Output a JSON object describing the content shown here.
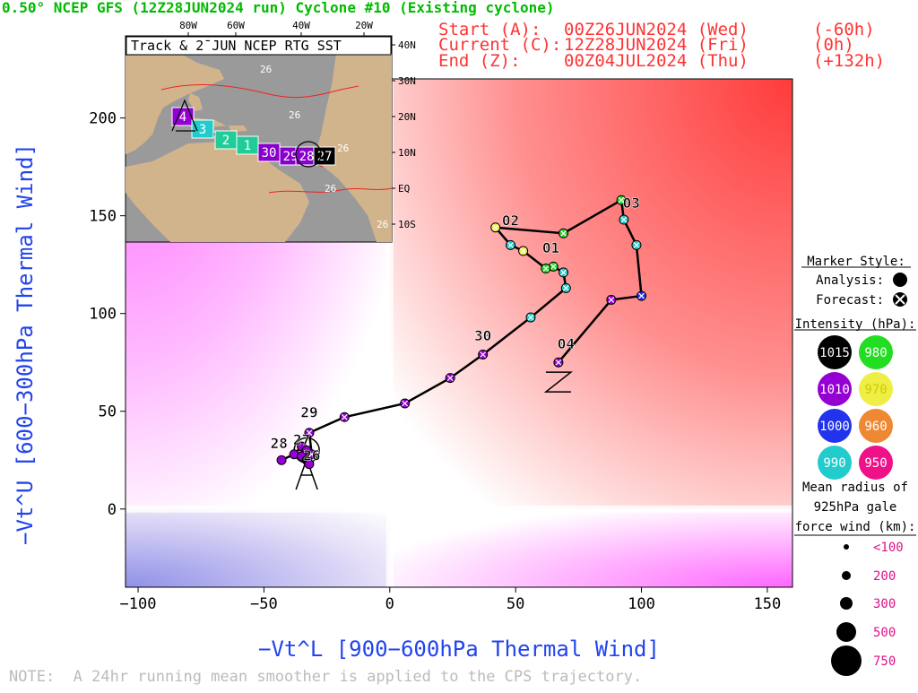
{
  "header": {
    "title": "0.50° NCEP GFS (12Z28JUN2024 run) Cyclone #10 (Existing cyclone)",
    "start_label": "Start (A):",
    "start_time": "00Z26JUN2024 (Wed)",
    "start_offset": "(-60h)",
    "current_label": "Current (C):",
    "current_time": "12Z28JUN2024 (Fri)",
    "current_offset": "(0h)",
    "end_label": "End (Z):",
    "end_time": "00Z04JUL2024 (Thu)",
    "end_offset": "(+132h)"
  },
  "colors": {
    "title": "#00bb00",
    "times": "#ff3333",
    "axis_labels": "#2244ee",
    "note": "#bbbbbb",
    "track": "#000000",
    "warm_quadrant": "#ff3b3b",
    "cold_quadrant": "#ff66ff",
    "shallow_cold": "#9090e8",
    "map_land": "#d2b48c",
    "map_ocean": "#9a9a9a",
    "sst_contour": "#ee2222"
  },
  "chart_data": {
    "type": "scatter",
    "xlabel": "−Vt^L [900−600hPa Thermal Wind]",
    "ylabel": "−Vt^U [600−300hPa Thermal Wind]",
    "xlim": [
      -105,
      160
    ],
    "ylim": [
      -40,
      220
    ],
    "xticks": [
      "−100",
      "−50",
      "0",
      "50",
      "100",
      "150"
    ],
    "xtick_values": [
      -100,
      -50,
      0,
      50,
      100,
      150
    ],
    "yticks": [
      "0",
      "50",
      "100",
      "150",
      "200"
    ],
    "ytick_values": [
      0,
      50,
      100,
      150,
      200
    ],
    "track": [
      {
        "x": -43,
        "y": 25,
        "intensity": 1010,
        "type": "analysis"
      },
      {
        "x": -38,
        "y": 28,
        "intensity": 1010,
        "type": "analysis"
      },
      {
        "x": -35,
        "y": 32,
        "intensity": 1010,
        "type": "analysis"
      },
      {
        "x": -33,
        "y": 30,
        "intensity": 1010,
        "type": "analysis"
      },
      {
        "x": -35,
        "y": 27,
        "intensity": 1010,
        "type": "analysis"
      },
      {
        "x": -33,
        "y": 25,
        "intensity": 1015,
        "type": "analysis"
      },
      {
        "x": -32,
        "y": 23,
        "intensity": 1010,
        "type": "analysis"
      },
      {
        "x": -31,
        "y": 28,
        "intensity": 1010,
        "type": "forecast"
      },
      {
        "x": -32,
        "y": 39,
        "intensity": 1010,
        "type": "forecast"
      },
      {
        "x": -18,
        "y": 47,
        "intensity": 1010,
        "type": "forecast"
      },
      {
        "x": 6,
        "y": 54,
        "intensity": 1010,
        "type": "forecast"
      },
      {
        "x": 24,
        "y": 67,
        "intensity": 1010,
        "type": "forecast"
      },
      {
        "x": 37,
        "y": 79,
        "intensity": 1010,
        "type": "forecast"
      },
      {
        "x": 56,
        "y": 98,
        "intensity": 990,
        "type": "forecast"
      },
      {
        "x": 70,
        "y": 113,
        "intensity": 990,
        "type": "forecast"
      },
      {
        "x": 69,
        "y": 121,
        "intensity": 990,
        "type": "forecast"
      },
      {
        "x": 65,
        "y": 124,
        "intensity": 980,
        "type": "forecast"
      },
      {
        "x": 62,
        "y": 123,
        "intensity": 980,
        "type": "forecast"
      },
      {
        "x": 53,
        "y": 132,
        "intensity": 970,
        "type": "forecast"
      },
      {
        "x": 48,
        "y": 135,
        "intensity": 990,
        "type": "forecast"
      },
      {
        "x": 42,
        "y": 144,
        "intensity": 970,
        "type": "forecast"
      },
      {
        "x": 69,
        "y": 141,
        "intensity": 980,
        "type": "forecast"
      },
      {
        "x": 92,
        "y": 158,
        "intensity": 980,
        "type": "forecast"
      },
      {
        "x": 93,
        "y": 148,
        "intensity": 990,
        "type": "forecast"
      },
      {
        "x": 98,
        "y": 135,
        "intensity": 990,
        "type": "forecast"
      },
      {
        "x": 100,
        "y": 109,
        "intensity": 1000,
        "type": "forecast"
      },
      {
        "x": 88,
        "y": 107,
        "intensity": 1010,
        "type": "forecast"
      },
      {
        "x": 67,
        "y": 75,
        "intensity": 1010,
        "type": "forecast"
      }
    ],
    "day_labels": [
      {
        "text": "26",
        "x": -31,
        "y": 25
      },
      {
        "text": "27",
        "x": -35,
        "y": 33
      },
      {
        "text": "28",
        "x": -44,
        "y": 31
      },
      {
        "text": "29",
        "x": -32,
        "y": 47
      },
      {
        "text": "30",
        "x": 37,
        "y": 86
      },
      {
        "text": "01",
        "x": 64,
        "y": 131
      },
      {
        "text": "02",
        "x": 48,
        "y": 145
      },
      {
        "text": "03",
        "x": 96,
        "y": 154
      },
      {
        "text": "04",
        "x": 70,
        "y": 82
      }
    ],
    "markers": {
      "start": {
        "label": "A",
        "x": -33,
        "y": 21
      },
      "current": {
        "label": "C",
        "x": -33,
        "y": 30
      },
      "end": {
        "label": "Z",
        "x": 67,
        "y": 70
      }
    }
  },
  "inset": {
    "title": "Track & 2¯JUN NCEP RTG SST",
    "lon_labels": [
      "80W",
      "60W",
      "40W",
      "20W"
    ],
    "lat_labels": [
      "40N",
      "30N",
      "20N",
      "10N",
      "EQ",
      "10S"
    ],
    "sst_labels": [
      "26",
      "26",
      "26",
      "26",
      "26"
    ],
    "track_boxes": [
      {
        "label": "4",
        "color": "#9400d3"
      },
      {
        "label": "3",
        "color": "#22cccc"
      },
      {
        "label": "2",
        "color": "#22cc99"
      },
      {
        "label": "1",
        "color": "#22cc99"
      },
      {
        "label": "30",
        "color": "#8800cc"
      },
      {
        "label": "29",
        "color": "#8800cc"
      },
      {
        "label": "28",
        "color": "#8800cc"
      },
      {
        "label": "27",
        "color": "#000000"
      }
    ]
  },
  "legend": {
    "marker_style_title": "Marker Style:",
    "analysis_label": "Analysis:",
    "forecast_label": "Forecast:",
    "intensity_title": "Intensity (hPa):",
    "intensities": [
      {
        "value": "1015",
        "color": "#000000"
      },
      {
        "value": "980",
        "color": "#22dd22"
      },
      {
        "value": "1010",
        "color": "#9400d3"
      },
      {
        "value": "970",
        "color": "#eeee44"
      },
      {
        "value": "1000",
        "color": "#2233ee"
      },
      {
        "value": "960",
        "color": "#ee8833"
      },
      {
        "value": "990",
        "color": "#22cccc"
      },
      {
        "value": "950",
        "color": "#ee1188"
      }
    ],
    "radius_title_1": "Mean radius of",
    "radius_title_2": "925hPa gale",
    "radius_title_3": "force wind (km):",
    "radii": [
      "<100",
      "200",
      "300",
      "500",
      "750"
    ]
  },
  "note": "NOTE:  A 24hr running mean smoother is applied to the CPS trajectory."
}
